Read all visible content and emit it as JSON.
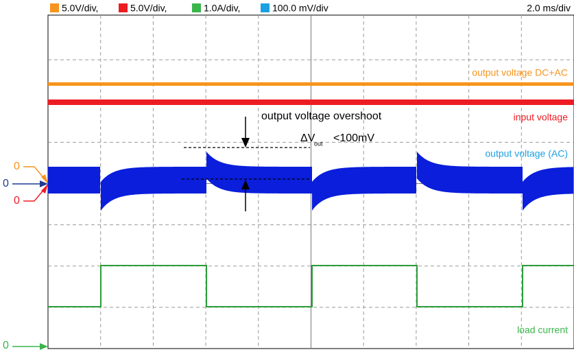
{
  "header": {
    "scales": [
      "5.0V/div,",
      "5.0V/div,",
      "1.0A/div,",
      "100.0 mV/div"
    ],
    "timebase": "2.0 ms/div"
  },
  "traces": {
    "output_dc_ac": "output voltage DC+AC",
    "input": "input voltage",
    "output_ac": "output voltage (AC)",
    "load": "load current"
  },
  "annotation": {
    "overshoot": "output voltage overshoot",
    "delta": "ΔV",
    "subscript": "out",
    "limit": "<100mV"
  },
  "markers": [
    "0",
    "0",
    "0",
    "0"
  ]
}
